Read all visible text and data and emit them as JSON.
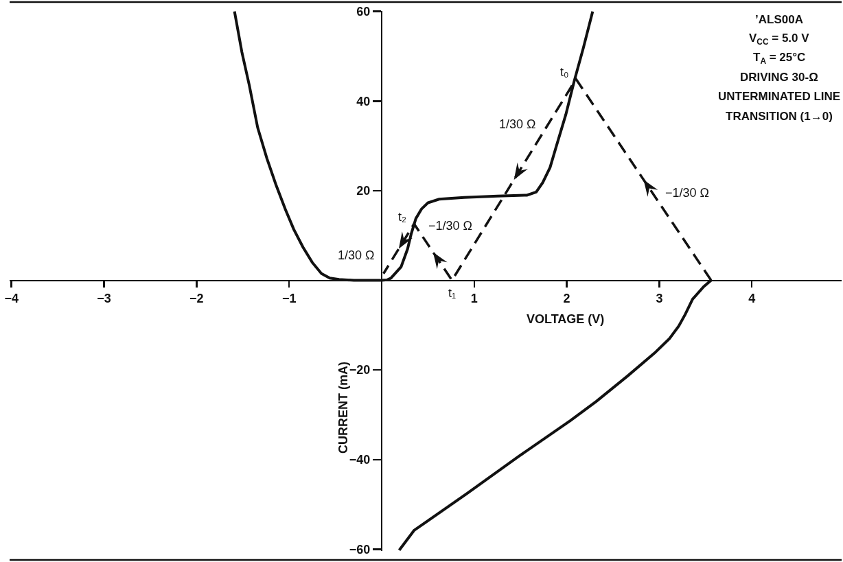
{
  "chart_data": {
    "type": "line",
    "xlabel": "VOLTAGE (V)",
    "ylabel": "CURRENT (mA)",
    "annotations": [
      "’ALS00A",
      "V$_{CC}$ = 5.0 V",
      "T$_{A}$ = 25°C",
      "DRIVING 30-Ω",
      "UNTERMINATED LINE",
      "TRANSITION (1→0)",
      {
        "text": "t₀",
        "x": 2.1,
        "y": 44.9
      },
      {
        "text": "t₁",
        "x": 0.76,
        "y": 0
      },
      {
        "text": "t₂",
        "x": 0.35,
        "y": 12.6
      },
      {
        "text": "1/30 Ω",
        "x": 0.14,
        "y": 5.6
      },
      {
        "text": "−1/30 Ω",
        "x": 0.47,
        "y": 9
      },
      {
        "text": "1/30 Ω",
        "x": 1.71,
        "y": 31.9
      },
      {
        "text": "−1/30 Ω",
        "x": 3.03,
        "y": 16.3
      }
    ],
    "xlim": [
      -4.02,
      4.97
    ],
    "xticks": [
      -4,
      -3,
      -2,
      -1,
      1,
      2,
      3,
      4
    ],
    "ylim": [
      -60.4,
      60.1
    ],
    "yticks": [
      -60,
      -40,
      -20,
      20,
      40,
      60
    ],
    "series": [
      {
        "color": "#111111",
        "x": [
          -1.59,
          -1.51,
          -1.43,
          -1.34,
          -1.24,
          -1.14,
          -1.04,
          -0.95,
          -0.85,
          -0.75,
          -0.65,
          -0.56,
          -0.46,
          -0.3,
          0.0,
          0.06,
          0.1,
          0.21,
          0.28,
          0.32,
          0.37,
          0.43,
          0.5,
          0.62,
          0.89,
          1.25,
          1.57,
          1.67,
          1.74,
          1.82,
          1.89,
          1.99,
          2.08,
          2.18,
          2.28
        ],
        "values": [
          60,
          50.9,
          43.5,
          34.1,
          27.2,
          21.2,
          15.8,
          11.4,
          7.4,
          4.0,
          1.5,
          0.5,
          0.2,
          0,
          0,
          0.1,
          0.5,
          3.0,
          7.0,
          10.4,
          13.8,
          15.9,
          17.3,
          18.1,
          18.5,
          18.8,
          19.0,
          19.7,
          21.8,
          25.2,
          30.1,
          37.0,
          44.4,
          51.9,
          60
        ]
      },
      {
        "color": "#111111",
        "x": [
          3.56,
          3.48,
          3.36,
          3.28,
          3.21,
          3.11,
          2.95,
          2.66,
          2.32,
          2.04,
          1.48,
          0.92,
          0.35,
          0.19
        ],
        "values": [
          0,
          -1.4,
          -4.2,
          -7.6,
          -10.2,
          -13.0,
          -16.2,
          -21.3,
          -27.0,
          -31.3,
          -39.3,
          -47.6,
          -55.8,
          -60.2
        ]
      },
      {
        "color": "#111111",
        "line_style": "dashed",
        "x": [
          3.56,
          2.1,
          0.76,
          0.35,
          0.02
        ],
        "values": [
          0,
          44.9,
          0,
          12.6,
          1.5
        ]
      }
    ]
  }
}
